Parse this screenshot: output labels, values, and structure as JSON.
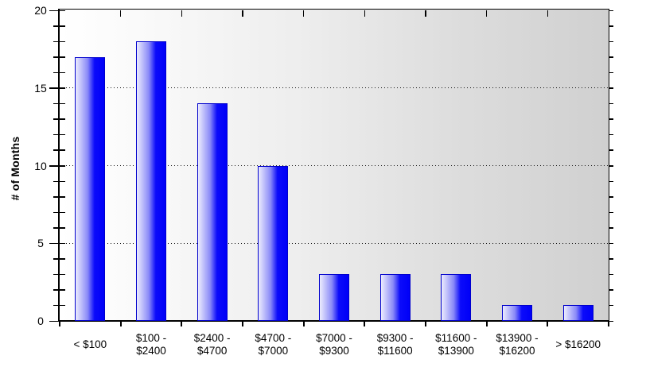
{
  "chart": {
    "colors": {
      "bar_fill_light": "#ececfd",
      "bar_fill_dark": "#0000f8",
      "bar_border": "#0000cc",
      "plot_bg_left": "#ffffff",
      "plot_bg_right": "#d0d0d0",
      "axis": "#000000",
      "text": "#000000",
      "page_bg": "#ffffff"
    }
  },
  "chart_data": {
    "type": "bar",
    "title": "",
    "xlabel": "",
    "ylabel": "# of Months",
    "categories": [
      "< $100",
      "$100 - $2400",
      "$2400 - $4700",
      "$4700 - $7000",
      "$7000 - $9300",
      "$9300 - $11600",
      "$11600 - $13900",
      "$13900 - $16200",
      "> $16200"
    ],
    "category_label_lines": [
      [
        "< $100"
      ],
      [
        "$100 -",
        "$2400"
      ],
      [
        "$2400 -",
        "$4700"
      ],
      [
        "$4700 -",
        "$7000"
      ],
      [
        "$7000 -",
        "$9300"
      ],
      [
        "$9300 -",
        "$11600"
      ],
      [
        "$11600 -",
        "$13900"
      ],
      [
        "$13900 -",
        "$16200"
      ],
      [
        "> $16200"
      ]
    ],
    "values": [
      17,
      18,
      14,
      10,
      3,
      3,
      3,
      1,
      1
    ],
    "ylim": [
      0,
      20
    ],
    "yticks": [
      0,
      5,
      10,
      15,
      20
    ],
    "minor_tick_step": 1,
    "gridline_values": [
      5,
      10,
      15
    ],
    "grid": "dotted-horizontal",
    "legend": "none"
  }
}
